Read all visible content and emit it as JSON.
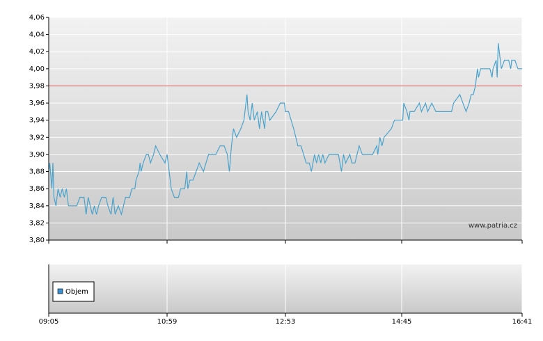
{
  "chart_data": {
    "type": "line",
    "color": "#4aa3cc",
    "x": [
      "09:05",
      "09:06",
      "09:08",
      "09:09",
      "09:10",
      "09:12",
      "09:14",
      "09:16",
      "09:18",
      "09:20",
      "09:22",
      "09:24",
      "09:28",
      "09:32",
      "09:35",
      "09:39",
      "09:40",
      "09:41",
      "09:43",
      "09:45",
      "09:47",
      "09:49",
      "09:51",
      "09:53",
      "09:56",
      "10:00",
      "10:02",
      "10:05",
      "10:07",
      "10:09",
      "10:12",
      "10:15",
      "10:17",
      "10:19",
      "10:23",
      "10:25",
      "10:28",
      "10:29",
      "10:32",
      "10:33",
      "10:34",
      "10:36",
      "10:39",
      "10:41",
      "10:43",
      "10:46",
      "10:48",
      "10:52",
      "10:57",
      "10:59",
      "11:01",
      "11:03",
      "11:06",
      "11:10",
      "11:12",
      "11:16",
      "11:18",
      "11:19",
      "11:21",
      "11:24",
      "11:30",
      "11:34",
      "11:39",
      "11:46",
      "11:50",
      "11:54",
      "11:57",
      "11:59",
      "12:01",
      "12:03",
      "12:06",
      "12:10",
      "12:13",
      "12:15",
      "12:16",
      "12:17",
      "12:19",
      "12:21",
      "12:23",
      "12:26",
      "12:28",
      "12:30",
      "12:33",
      "12:34",
      "12:36",
      "12:38",
      "12:44",
      "12:48",
      "12:52",
      "12:53",
      "12:56",
      "13:01",
      "13:05",
      "13:08",
      "13:13",
      "13:16",
      "13:18",
      "13:21",
      "13:23",
      "13:25",
      "13:27",
      "13:29",
      "13:31",
      "13:35",
      "13:40",
      "13:44",
      "13:47",
      "13:49",
      "13:51",
      "13:55",
      "13:57",
      "14:00",
      "14:04",
      "14:07",
      "14:11",
      "14:17",
      "14:21",
      "14:22",
      "14:24",
      "14:26",
      "14:28",
      "14:35",
      "14:38",
      "14:46",
      "14:47",
      "14:50",
      "14:52",
      "14:53",
      "14:57",
      "15:02",
      "15:04",
      "15:08",
      "15:10",
      "15:14",
      "15:18",
      "15:27",
      "15:33",
      "15:35",
      "15:41",
      "15:44",
      "15:47",
      "15:50",
      "15:52",
      "15:54",
      "15:56",
      "15:58",
      "15:59",
      "16:01",
      "16:04",
      "16:06",
      "16:10",
      "16:12",
      "16:13",
      "16:16",
      "16:17",
      "16:18",
      "16:21",
      "16:24",
      "16:28",
      "16:30",
      "16:31",
      "16:34",
      "16:37",
      "16:41"
    ],
    "values": [
      3.88,
      3.89,
      3.86,
      3.89,
      3.85,
      3.84,
      3.86,
      3.85,
      3.86,
      3.85,
      3.86,
      3.84,
      3.84,
      3.84,
      3.85,
      3.85,
      3.84,
      3.83,
      3.85,
      3.84,
      3.83,
      3.84,
      3.83,
      3.84,
      3.85,
      3.85,
      3.84,
      3.83,
      3.85,
      3.83,
      3.84,
      3.83,
      3.84,
      3.85,
      3.85,
      3.86,
      3.86,
      3.87,
      3.88,
      3.89,
      3.88,
      3.89,
      3.9,
      3.9,
      3.89,
      3.9,
      3.91,
      3.9,
      3.89,
      3.9,
      3.88,
      3.86,
      3.85,
      3.85,
      3.86,
      3.86,
      3.88,
      3.86,
      3.87,
      3.87,
      3.89,
      3.88,
      3.9,
      3.9,
      3.91,
      3.91,
      3.9,
      3.88,
      3.91,
      3.93,
      3.92,
      3.93,
      3.94,
      3.96,
      3.97,
      3.95,
      3.94,
      3.96,
      3.94,
      3.95,
      3.93,
      3.95,
      3.93,
      3.95,
      3.95,
      3.94,
      3.95,
      3.96,
      3.96,
      3.95,
      3.95,
      3.93,
      3.91,
      3.91,
      3.89,
      3.89,
      3.88,
      3.9,
      3.89,
      3.9,
      3.89,
      3.9,
      3.89,
      3.9,
      3.9,
      3.9,
      3.88,
      3.9,
      3.89,
      3.9,
      3.89,
      3.89,
      3.91,
      3.9,
      3.9,
      3.9,
      3.91,
      3.9,
      3.92,
      3.91,
      3.92,
      3.93,
      3.94,
      3.94,
      3.96,
      3.95,
      3.94,
      3.95,
      3.95,
      3.96,
      3.95,
      3.96,
      3.95,
      3.96,
      3.95,
      3.95,
      3.95,
      3.96,
      3.97,
      3.96,
      3.95,
      3.96,
      3.97,
      3.97,
      3.98,
      4.0,
      3.99,
      4.0,
      4.0,
      4.0,
      4.0,
      3.99,
      4.0,
      4.01,
      3.99,
      4.03,
      4.0,
      4.01,
      4.01,
      4.0,
      4.01,
      4.01,
      4.0,
      4.0
    ],
    "xlim": [
      "09:05",
      "16:41"
    ],
    "xticks": [
      "09:05",
      "10:59",
      "12:53",
      "14:45",
      "16:41"
    ],
    "ylim": [
      3.8,
      4.06
    ],
    "yticks": [
      {
        "value": 3.8,
        "label": "3,80"
      },
      {
        "value": 3.82,
        "label": "3,82"
      },
      {
        "value": 3.84,
        "label": "3,84"
      },
      {
        "value": 3.86,
        "label": "3,86"
      },
      {
        "value": 3.88,
        "label": "3,88"
      },
      {
        "value": 3.9,
        "label": "3,90"
      },
      {
        "value": 3.92,
        "label": "3,92"
      },
      {
        "value": 3.94,
        "label": "3,94"
      },
      {
        "value": 3.96,
        "label": "3,96"
      },
      {
        "value": 3.98,
        "label": "3,98"
      },
      {
        "value": 4.0,
        "label": "4,00"
      },
      {
        "value": 4.02,
        "label": "4,02"
      },
      {
        "value": 4.04,
        "label": "4,04"
      },
      {
        "value": 4.06,
        "label": "4,06"
      }
    ],
    "grid": true,
    "reference_line": 3.98,
    "reference_color": "#e05050",
    "watermark": "www.patria.cz",
    "volume_panel": {
      "legend_label": "Objem",
      "legend_color": "#3b8fd0"
    }
  }
}
